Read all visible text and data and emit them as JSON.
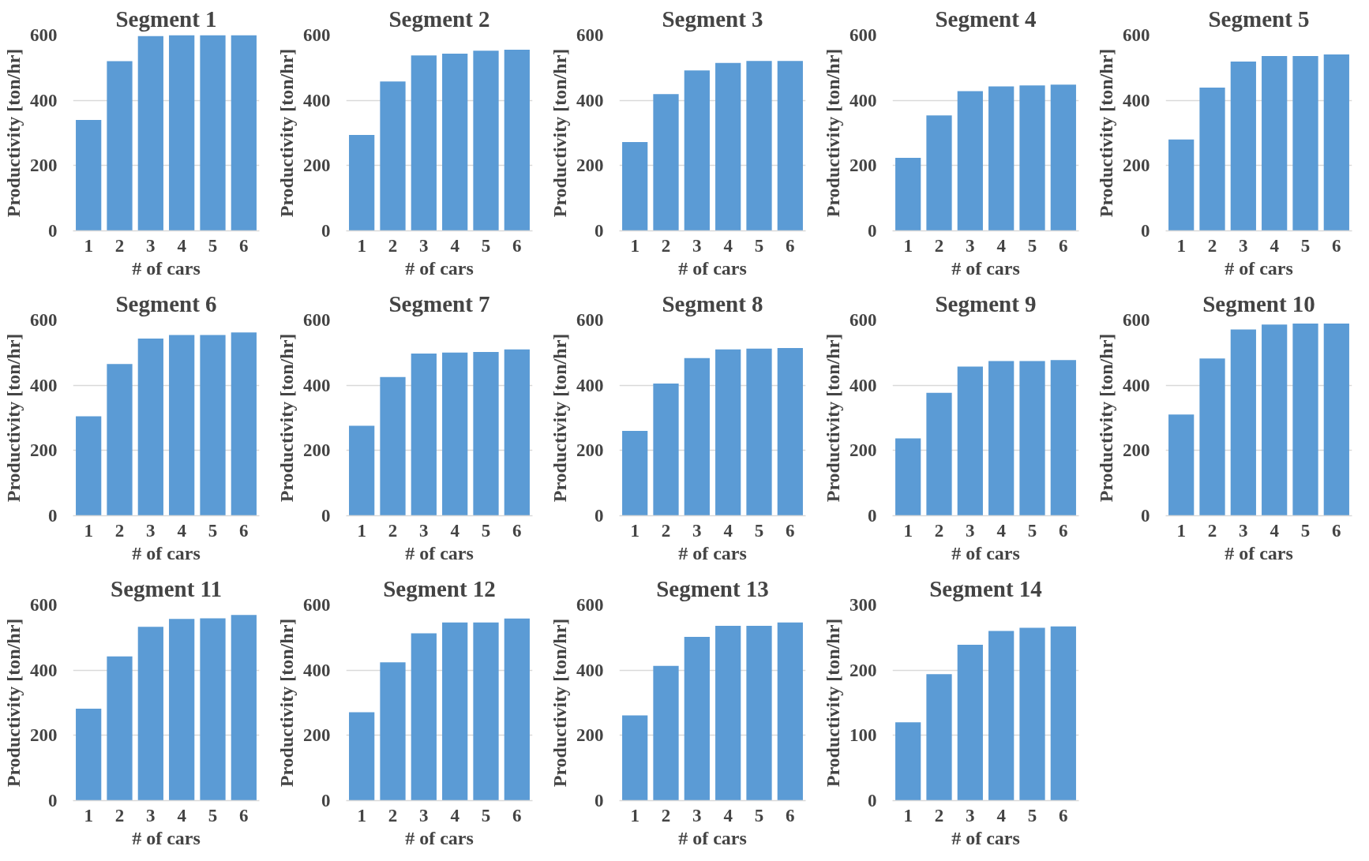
{
  "chart_data": [
    {
      "type": "bar",
      "title": "Segment 1",
      "xlabel": "# of cars",
      "ylabel": "Productivity [ton/hr]",
      "categories": [
        "1",
        "2",
        "3",
        "4",
        "5",
        "6"
      ],
      "values": [
        340,
        520,
        597,
        600,
        600,
        600
      ],
      "color": "#5b9bd5",
      "ylim": [
        0,
        600
      ],
      "yticks": [
        0,
        200,
        400,
        600
      ],
      "grid": "y"
    },
    {
      "type": "bar",
      "title": "Segment 2",
      "xlabel": "# of cars",
      "ylabel": "Productivity [ton/hr]",
      "categories": [
        "1",
        "2",
        "3",
        "4",
        "5",
        "6"
      ],
      "values": [
        294,
        458,
        538,
        543,
        552,
        555
      ],
      "color": "#5b9bd5",
      "ylim": [
        0,
        600
      ],
      "yticks": [
        0,
        200,
        400,
        600
      ],
      "grid": "y"
    },
    {
      "type": "bar",
      "title": "Segment 3",
      "xlabel": "# of cars",
      "ylabel": "Productivity [ton/hr]",
      "categories": [
        "1",
        "2",
        "3",
        "4",
        "5",
        "6"
      ],
      "values": [
        272,
        419,
        492,
        515,
        521,
        521
      ],
      "color": "#5b9bd5",
      "ylim": [
        0,
        600
      ],
      "yticks": [
        0,
        200,
        400,
        600
      ],
      "grid": "y"
    },
    {
      "type": "bar",
      "title": "Segment 4",
      "xlabel": "# of cars",
      "ylabel": "Productivity [ton/hr]",
      "categories": [
        "1",
        "2",
        "3",
        "4",
        "5",
        "6"
      ],
      "values": [
        224,
        354,
        428,
        443,
        446,
        448
      ],
      "color": "#5b9bd5",
      "ylim": [
        0,
        600
      ],
      "yticks": [
        0,
        200,
        400,
        600
      ],
      "grid": "y"
    },
    {
      "type": "bar",
      "title": "Segment 5",
      "xlabel": "# of cars",
      "ylabel": "Productivity [ton/hr]",
      "categories": [
        "1",
        "2",
        "3",
        "4",
        "5",
        "6"
      ],
      "values": [
        280,
        439,
        519,
        536,
        536,
        541
      ],
      "color": "#5b9bd5",
      "ylim": [
        0,
        600
      ],
      "yticks": [
        0,
        200,
        400,
        600
      ],
      "grid": "y"
    },
    {
      "type": "bar",
      "title": "Segment 6",
      "xlabel": "# of cars",
      "ylabel": "Productivity [ton/hr]",
      "categories": [
        "1",
        "2",
        "3",
        "4",
        "5",
        "6"
      ],
      "values": [
        305,
        465,
        543,
        554,
        554,
        562
      ],
      "color": "#5b9bd5",
      "ylim": [
        0,
        600
      ],
      "yticks": [
        0,
        200,
        400,
        600
      ],
      "grid": "y"
    },
    {
      "type": "bar",
      "title": "Segment 7",
      "xlabel": "# of cars",
      "ylabel": "Productivity [ton/hr]",
      "categories": [
        "1",
        "2",
        "3",
        "4",
        "5",
        "6"
      ],
      "values": [
        276,
        425,
        497,
        500,
        502,
        510
      ],
      "color": "#5b9bd5",
      "ylim": [
        0,
        600
      ],
      "yticks": [
        0,
        200,
        400,
        600
      ],
      "grid": "y"
    },
    {
      "type": "bar",
      "title": "Segment 8",
      "xlabel": "# of cars",
      "ylabel": "Productivity [ton/hr]",
      "categories": [
        "1",
        "2",
        "3",
        "4",
        "5",
        "6"
      ],
      "values": [
        260,
        405,
        483,
        510,
        512,
        514
      ],
      "color": "#5b9bd5",
      "ylim": [
        0,
        600
      ],
      "yticks": [
        0,
        200,
        400,
        600
      ],
      "grid": "y"
    },
    {
      "type": "bar",
      "title": "Segment 9",
      "xlabel": "# of cars",
      "ylabel": "Productivity [ton/hr]",
      "categories": [
        "1",
        "2",
        "3",
        "4",
        "5",
        "6"
      ],
      "values": [
        237,
        377,
        457,
        474,
        474,
        477
      ],
      "color": "#5b9bd5",
      "ylim": [
        0,
        600
      ],
      "yticks": [
        0,
        200,
        400,
        600
      ],
      "grid": "y"
    },
    {
      "type": "bar",
      "title": "Segment 10",
      "xlabel": "# of cars",
      "ylabel": "Productivity [ton/hr]",
      "categories": [
        "1",
        "2",
        "3",
        "4",
        "5",
        "6"
      ],
      "values": [
        310,
        482,
        571,
        586,
        589,
        589
      ],
      "color": "#5b9bd5",
      "ylim": [
        0,
        600
      ],
      "yticks": [
        0,
        200,
        400,
        600
      ],
      "grid": "y"
    },
    {
      "type": "bar",
      "title": "Segment 11",
      "xlabel": "# of cars",
      "ylabel": "Productivity [ton/hr]",
      "categories": [
        "1",
        "2",
        "3",
        "4",
        "5",
        "6"
      ],
      "values": [
        282,
        442,
        533,
        557,
        559,
        569
      ],
      "color": "#5b9bd5",
      "ylim": [
        0,
        600
      ],
      "yticks": [
        0,
        200,
        400,
        600
      ],
      "grid": "y"
    },
    {
      "type": "bar",
      "title": "Segment 12",
      "xlabel": "# of cars",
      "ylabel": "Productivity [ton/hr]",
      "categories": [
        "1",
        "2",
        "3",
        "4",
        "5",
        "6"
      ],
      "values": [
        271,
        424,
        513,
        546,
        546,
        558
      ],
      "color": "#5b9bd5",
      "ylim": [
        0,
        600
      ],
      "yticks": [
        0,
        200,
        400,
        600
      ],
      "grid": "y"
    },
    {
      "type": "bar",
      "title": "Segment 13",
      "xlabel": "# of cars",
      "ylabel": "Productivity [ton/hr]",
      "categories": [
        "1",
        "2",
        "3",
        "4",
        "5",
        "6"
      ],
      "values": [
        261,
        413,
        502,
        536,
        536,
        546
      ],
      "color": "#5b9bd5",
      "ylim": [
        0,
        600
      ],
      "yticks": [
        0,
        200,
        400,
        600
      ],
      "grid": "y"
    },
    {
      "type": "bar",
      "title": "Segment 14",
      "xlabel": "# of cars",
      "ylabel": "Productivity [ton/hr]",
      "categories": [
        "1",
        "2",
        "3",
        "4",
        "5",
        "6"
      ],
      "values": [
        120,
        194,
        239,
        260,
        265,
        267
      ],
      "color": "#5b9bd5",
      "ylim": [
        0,
        300
      ],
      "yticks": [
        0,
        100,
        200,
        300
      ],
      "grid": "y"
    }
  ]
}
